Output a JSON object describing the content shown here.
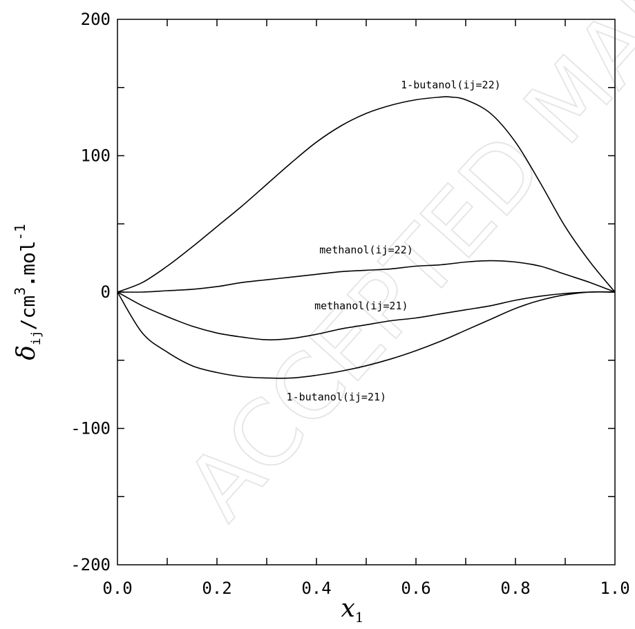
{
  "chart_data": {
    "type": "line",
    "xlabel": {
      "main": "x",
      "sub": "1"
    },
    "ylabel": {
      "main": "δ",
      "sub": "ij",
      "text": "/cm",
      "sup1": "3",
      "dot": ".",
      "text2": "mol",
      "sup2": "-1"
    },
    "xlim": [
      0.0,
      1.0
    ],
    "ylim": [
      -200,
      200
    ],
    "xticks": [
      0.0,
      0.2,
      0.4,
      0.6,
      0.8,
      1.0
    ],
    "xtick_labels": [
      "0.0",
      "0.2",
      "0.4",
      "0.6",
      "0.8",
      "1.0"
    ],
    "yticks": [
      200,
      100,
      0,
      -100,
      -200
    ],
    "ytick_labels": [
      "200",
      "100",
      "0",
      "-100",
      "-200"
    ],
    "grid": false,
    "series": [
      {
        "name": "1-butanol(ij=22)",
        "x": [
          0.0,
          0.05,
          0.1,
          0.15,
          0.2,
          0.25,
          0.3,
          0.35,
          0.4,
          0.45,
          0.5,
          0.55,
          0.6,
          0.65,
          0.67,
          0.7,
          0.75,
          0.8,
          0.85,
          0.9,
          0.95,
          1.0
        ],
        "y": [
          0,
          7,
          19,
          33,
          48,
          63,
          79,
          95,
          110,
          122,
          131,
          137,
          141,
          143,
          143,
          141,
          131,
          110,
          80,
          48,
          22,
          0
        ]
      },
      {
        "name": "methanol(ij=22)",
        "x": [
          0.0,
          0.05,
          0.1,
          0.15,
          0.2,
          0.25,
          0.3,
          0.35,
          0.4,
          0.45,
          0.5,
          0.55,
          0.6,
          0.65,
          0.7,
          0.75,
          0.8,
          0.85,
          0.9,
          0.95,
          1.0
        ],
        "y": [
          0,
          0,
          1,
          2,
          4,
          7,
          9,
          11,
          13,
          15,
          16,
          17,
          19,
          20,
          22,
          23,
          22,
          19,
          13,
          7,
          0
        ]
      },
      {
        "name": "methanol(ij=21)",
        "x": [
          0.0,
          0.05,
          0.1,
          0.15,
          0.2,
          0.25,
          0.3,
          0.35,
          0.4,
          0.45,
          0.5,
          0.55,
          0.6,
          0.65,
          0.7,
          0.75,
          0.8,
          0.85,
          0.9,
          0.95,
          1.0
        ],
        "y": [
          0,
          -10,
          -18,
          -25,
          -30,
          -33,
          -35,
          -34,
          -31,
          -27,
          -24,
          -21,
          -19,
          -16,
          -13,
          -10,
          -6,
          -3,
          -1,
          0,
          0
        ]
      },
      {
        "name": "1-butanol(ij=21)",
        "x": [
          0.0,
          0.05,
          0.1,
          0.15,
          0.2,
          0.25,
          0.3,
          0.35,
          0.4,
          0.45,
          0.5,
          0.55,
          0.6,
          0.65,
          0.7,
          0.75,
          0.8,
          0.85,
          0.9,
          0.95,
          1.0
        ],
        "y": [
          0,
          -30,
          -44,
          -54,
          -59,
          -62,
          -63,
          -63,
          -61,
          -58,
          -54,
          -49,
          -43,
          -36,
          -28,
          -20,
          -12,
          -6,
          -2,
          0,
          0
        ]
      }
    ],
    "annotations": [
      {
        "text": "1-butanol(ij=22)",
        "x": 0.67,
        "y": 152
      },
      {
        "text": "methanol(ij=22)",
        "x": 0.5,
        "y": 31
      },
      {
        "text": "methanol(ij=21)",
        "x": 0.49,
        "y": -10
      },
      {
        "text": "1-butanol(ij=21)",
        "x": 0.44,
        "y": -77
      }
    ],
    "watermark": "ACCEPTED MANUSCRIPT",
    "line_color": "#000000",
    "watermark_color": "#e6e6e6"
  }
}
